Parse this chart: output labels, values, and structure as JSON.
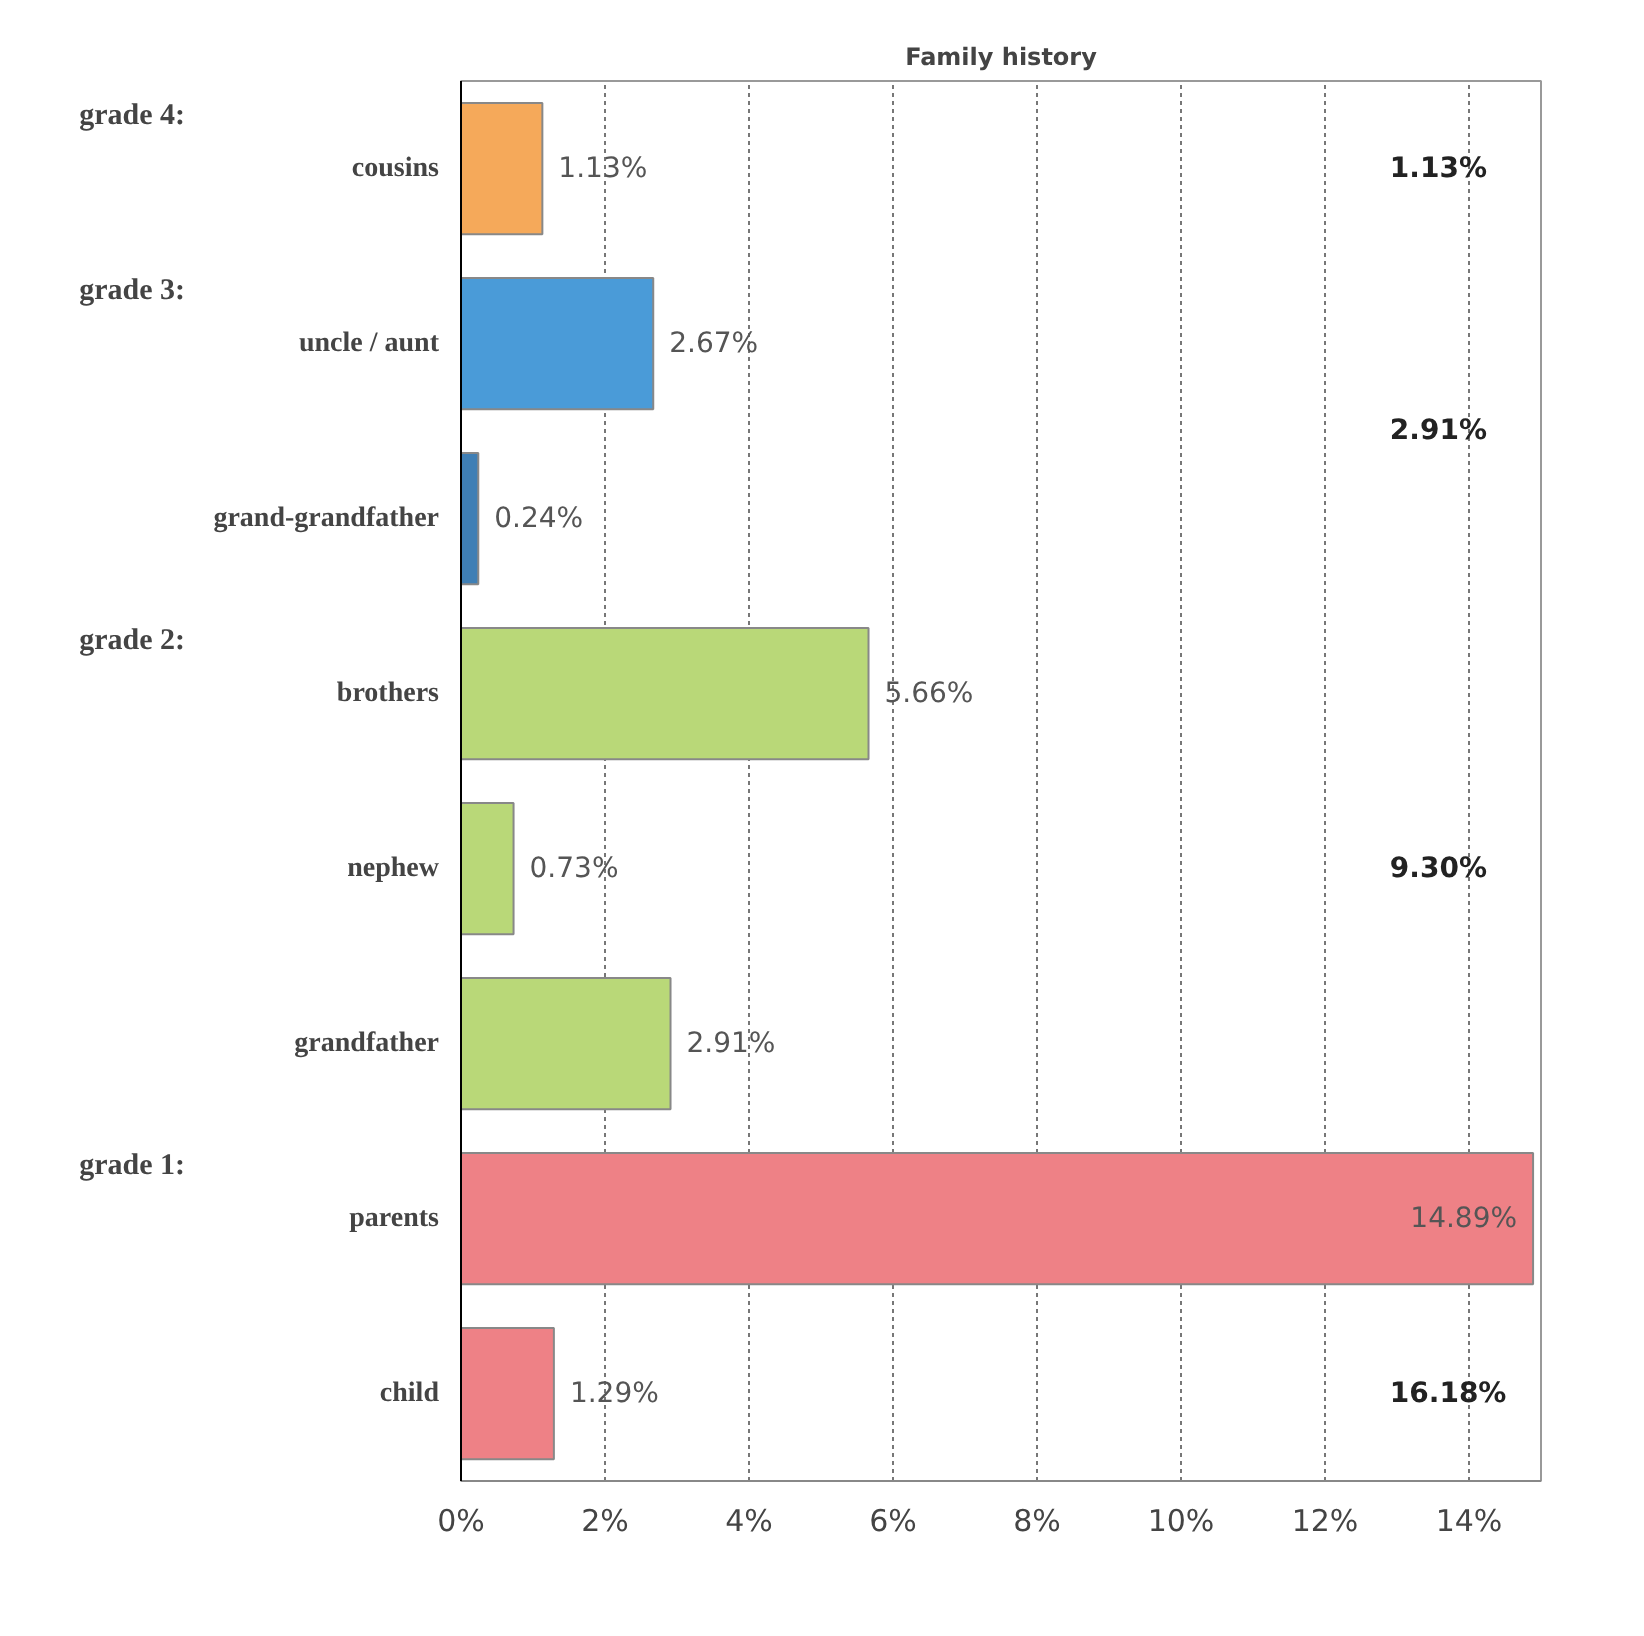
{
  "chart_data": {
    "type": "bar",
    "orientation": "horizontal",
    "title": "Family history",
    "categories": [
      "cousins",
      "uncle / aunt",
      "grand-grandfather",
      "brothers",
      "nephew",
      "grandfather",
      "parents",
      "child"
    ],
    "values": [
      1.13,
      2.67,
      0.24,
      5.66,
      0.73,
      2.91,
      14.89,
      1.29
    ],
    "colors": [
      "#f5a95a",
      "#4a9bd8",
      "#3f7fb5",
      "#b9d878",
      "#b9d878",
      "#b9d878",
      "#ee8186",
      "#ee8186"
    ],
    "value_labels": [
      "1.13%",
      "2.67%",
      "0.24%",
      "5.66%",
      "0.73%",
      "2.91%",
      "14.89%",
      "1.29%"
    ],
    "xlim": [
      0,
      15
    ],
    "xticks": [
      {
        "value": 0,
        "label": "0%"
      },
      {
        "value": 2,
        "label": "2%"
      },
      {
        "value": 4,
        "label": "4%"
      },
      {
        "value": 6,
        "label": "6%"
      },
      {
        "value": 8,
        "label": "8%"
      },
      {
        "value": 10,
        "label": "10%"
      },
      {
        "value": 12,
        "label": "12%"
      },
      {
        "value": 14,
        "label": "14%"
      }
    ],
    "grid": "x",
    "annotations": [
      "grade 4:",
      "grade 3:",
      "grade 2:",
      "grade 1:",
      "1.13%",
      "2.91%",
      "9.30%",
      "16.18%"
    ]
  }
}
